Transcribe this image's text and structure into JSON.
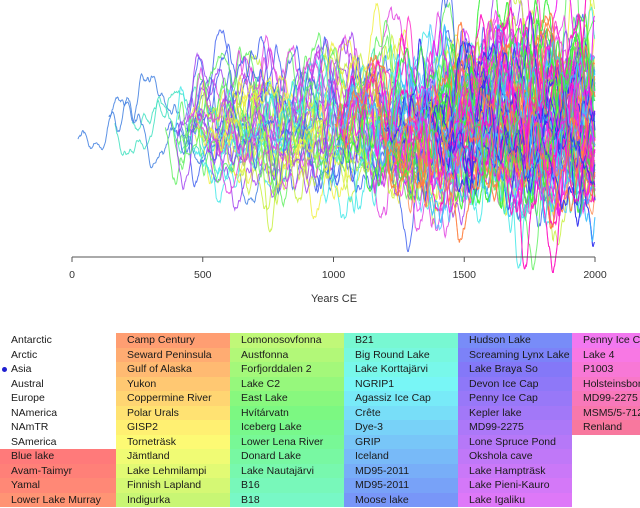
{
  "chart_data": {
    "type": "line",
    "title": "",
    "xlabel": "Years CE",
    "ylabel": "",
    "xlim": [
      0,
      2000
    ],
    "x_ticks": [
      0,
      500,
      1000,
      1500,
      2000
    ],
    "x_tick_labels": [
      "0",
      "500",
      "1000",
      "1500",
      "2000"
    ],
    "y_axis_shown": false,
    "grid": false,
    "legend_placement": "bottom",
    "series_note": "Dense overlay of proxy temperature series; one line per site listed in the legend, coloured by the legend cell colour",
    "series_groups": [
      {
        "name": "early-long-series",
        "start_year": 0,
        "end_year": 2000,
        "colors": [
          "#40e0c0",
          "#3f7fe0"
        ]
      },
      {
        "name": "mid-start-series",
        "start_year": 350,
        "end_year": 2000,
        "colors": [
          "#c8f040",
          "#f0f040",
          "#60f060",
          "#40e8e8",
          "#e040e0",
          "#a040f0",
          "#4060f0"
        ]
      },
      {
        "name": "late-start-series",
        "start_year": 1000,
        "end_year": 2000,
        "colors": [
          "#ff10c0",
          "#f020f0",
          "#3030f0",
          "#40c0ff",
          "#ff8040",
          "#40f040"
        ]
      }
    ]
  },
  "legend": {
    "regions": [
      {
        "label": "Antarctic",
        "selected": false
      },
      {
        "label": "Arctic",
        "selected": false
      },
      {
        "label": "Asia",
        "selected": true
      },
      {
        "label": "Austral",
        "selected": false
      },
      {
        "label": "Europe",
        "selected": false
      },
      {
        "label": "NAmerica",
        "selected": false
      },
      {
        "label": "NAmTR",
        "selected": false
      },
      {
        "label": "SAmerica",
        "selected": false
      }
    ],
    "columns": [
      {
        "items": [
          {
            "label": "Blue lake",
            "color": "#ff7a7a"
          },
          {
            "label": "Avam-Taimyr",
            "color": "#ff8078"
          },
          {
            "label": "Yamal",
            "color": "#ff8876"
          },
          {
            "label": "Lower Lake Murray",
            "color": "#ff9474"
          }
        ]
      },
      {
        "items": [
          {
            "label": "Camp Century",
            "color": "#ff9e72"
          },
          {
            "label": "Seward Peninsula",
            "color": "#ffac72"
          },
          {
            "label": "Gulf of Alaska",
            "color": "#ffba72"
          },
          {
            "label": "Yukon",
            "color": "#ffc872"
          },
          {
            "label": "Coppermine River",
            "color": "#ffd572"
          },
          {
            "label": "Polar Urals",
            "color": "#ffe272"
          },
          {
            "label": "GISP2",
            "color": "#fff072"
          },
          {
            "label": "Torneträsk",
            "color": "#fdfa74"
          },
          {
            "label": "Jämtland",
            "color": "#f0fb74"
          },
          {
            "label": "Lake Lehmilampi",
            "color": "#e2fa74"
          },
          {
            "label": "Finnish Lapland",
            "color": "#d5f874"
          },
          {
            "label": "Indigurka",
            "color": "#c8f674"
          }
        ]
      },
      {
        "items": [
          {
            "label": "Lomonosovfonna",
            "color": "#c0f878"
          },
          {
            "label": "Austfonna",
            "color": "#b2f878"
          },
          {
            "label": "Forfjorddalen 2",
            "color": "#a4f87a"
          },
          {
            "label": "Lake C2",
            "color": "#96f87c"
          },
          {
            "label": "East Lake",
            "color": "#88f87e"
          },
          {
            "label": "Hvítárvatn",
            "color": "#7cf882"
          },
          {
            "label": "Iceberg Lake",
            "color": "#78f88c"
          },
          {
            "label": "Lower Lena River",
            "color": "#78f896"
          },
          {
            "label": "Donard Lake",
            "color": "#78f8a2"
          },
          {
            "label": "Lake Nautajärvi",
            "color": "#78f8ae"
          },
          {
            "label": "B16",
            "color": "#78f8ba"
          },
          {
            "label": "B18",
            "color": "#78f8c6"
          }
        ]
      },
      {
        "items": [
          {
            "label": "B21",
            "color": "#78f8d2"
          },
          {
            "label": "Big Round Lake",
            "color": "#78f8de"
          },
          {
            "label": "Lake Korttajärvi",
            "color": "#78f8ea"
          },
          {
            "label": "NGRIP1",
            "color": "#78f6f6"
          },
          {
            "label": "Agassiz Ice  Cap",
            "color": "#78eaf8"
          },
          {
            "label": "Crête",
            "color": "#78def8"
          },
          {
            "label": "Dye-3",
            "color": "#78d2f8"
          },
          {
            "label": "GRIP",
            "color": "#78c6f8"
          },
          {
            "label": "Iceland",
            "color": "#78baf8"
          },
          {
            "label": "MD95-2011",
            "color": "#78aef8"
          },
          {
            "label": "MD95-2011",
            "color": "#78a2f8"
          },
          {
            "label": "Moose lake",
            "color": "#7896f8"
          }
        ]
      },
      {
        "items": [
          {
            "label": "Hudson Lake",
            "color": "#788cf8"
          },
          {
            "label": "Screaming Lynx Lake",
            "color": "#7c82f8"
          },
          {
            "label": "Lake Braya So",
            "color": "#8478f8"
          },
          {
            "label": "Devon Ice Cap",
            "color": "#8e78f8"
          },
          {
            "label": "Penny Ice Cap",
            "color": "#9878f8"
          },
          {
            "label": "Kepler lake",
            "color": "#a278f8"
          },
          {
            "label": "MD99-2275",
            "color": "#ac78f8"
          },
          {
            "label": "Lone Spruce Pond",
            "color": "#b678f8"
          },
          {
            "label": "Okshola cave",
            "color": "#c078f8"
          },
          {
            "label": "Lake Hampträsk",
            "color": "#ca78f8"
          },
          {
            "label": "Lake Pieni-Kauro",
            "color": "#d478f8"
          },
          {
            "label": "Lake Igaliku",
            "color": "#de78f8"
          }
        ]
      },
      {
        "items": [
          {
            "label": "Penny Ice Cap",
            "color": "#f278f0"
          },
          {
            "label": "Lake 4",
            "color": "#f878e4"
          },
          {
            "label": "P1003",
            "color": "#f878d6"
          },
          {
            "label": "Holsteinsborg",
            "color": "#f878c8"
          },
          {
            "label": "MD99-2275",
            "color": "#f878ba"
          },
          {
            "label": "MSM5/5-712",
            "color": "#f878ac"
          },
          {
            "label": "Renland",
            "color": "#f8789e"
          }
        ]
      }
    ]
  }
}
